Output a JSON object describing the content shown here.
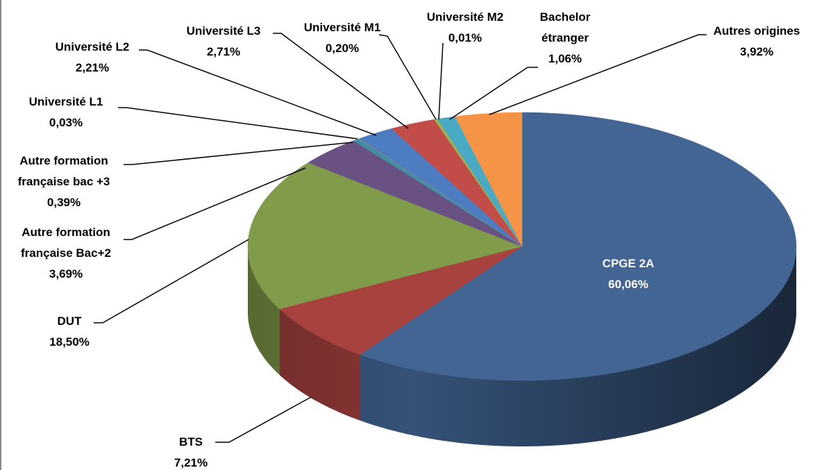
{
  "chart_data": {
    "type": "pie",
    "categories": [
      "CPGE 2A",
      "BTS",
      "DUT",
      "Autre formation française Bac+2",
      "Autre formation française bac +3",
      "Université L1",
      "Université L2",
      "Université L3",
      "Université M1",
      "Université M2",
      "Bachelor étranger",
      "Autres origines"
    ],
    "values": [
      60.06,
      7.21,
      18.5,
      3.69,
      0.39,
      0.03,
      2.21,
      2.71,
      0.2,
      0.01,
      1.06,
      3.92
    ],
    "value_labels": [
      "60,06%",
      "7,21%",
      "18,50%",
      "3,69%",
      "0,39%",
      "0,03%",
      "2,21%",
      "2,71%",
      "0,20%",
      "0,01%",
      "1,06%",
      "3,92%"
    ],
    "colors": [
      "#426594",
      "#A8423F",
      "#809B49",
      "#6A5183",
      "#3E8FA6",
      "#E88B3F",
      "#4E7CC0",
      "#C24C48",
      "#96B657",
      "#7E62A0",
      "#4AAAC4",
      "#F59446"
    ]
  }
}
